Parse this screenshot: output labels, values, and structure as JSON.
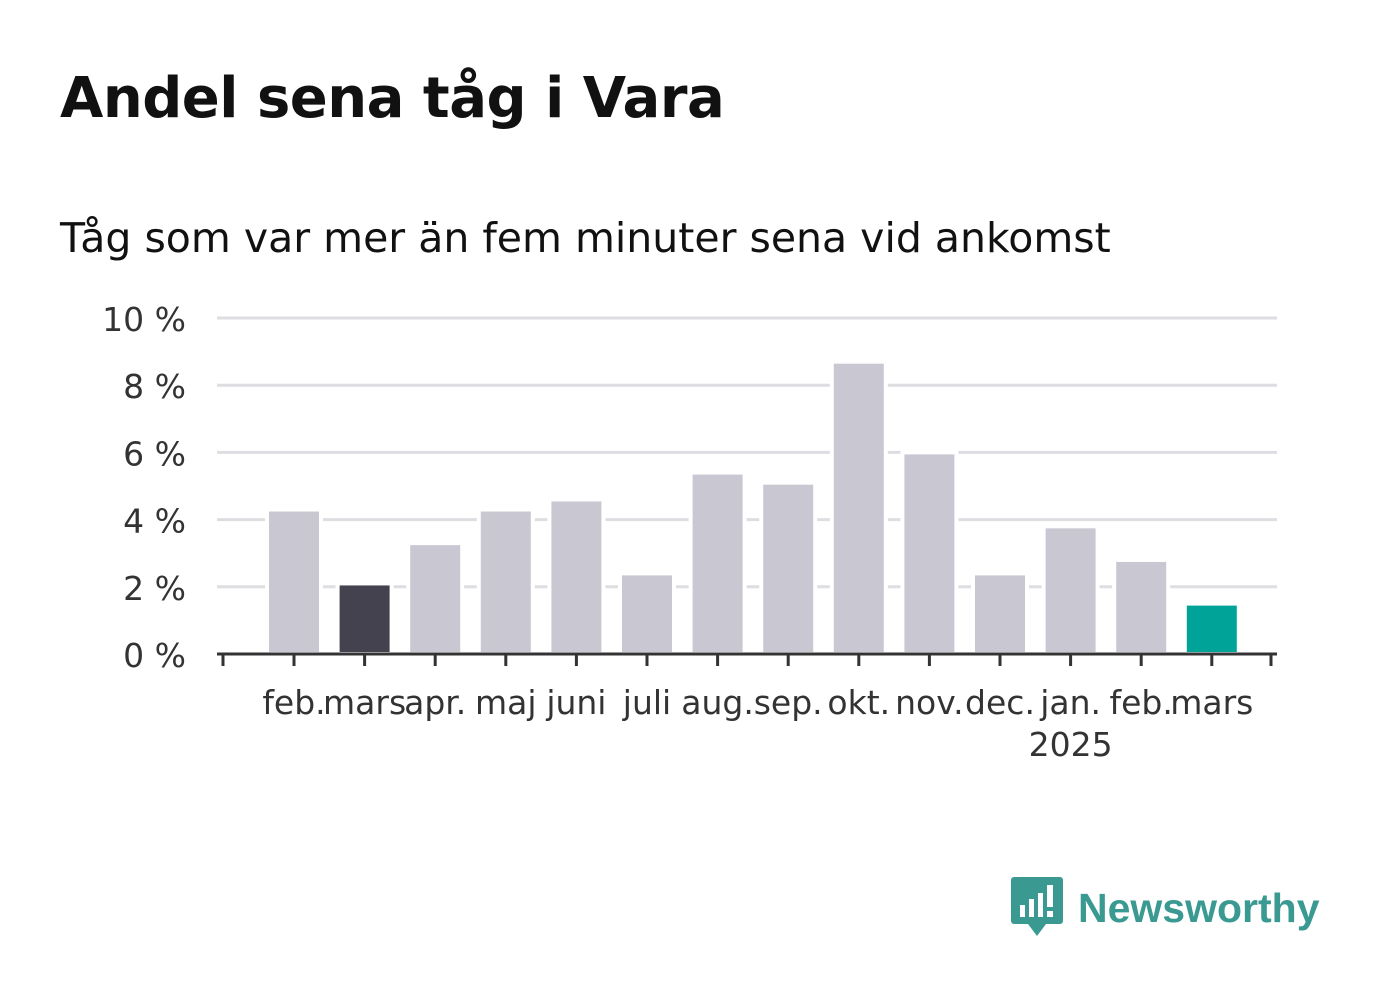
{
  "chart_data": {
    "type": "bar",
    "title": "Andel sena tåg i Vara",
    "subtitle": "Tåg som var mer än fem minuter sena vid ankomst",
    "categories": [
      "feb.",
      "mars",
      "apr.",
      "maj",
      "juni",
      "juli",
      "aug.",
      "sep.",
      "okt.",
      "nov.",
      "dec.",
      "jan.",
      "feb.",
      "mars"
    ],
    "year_labels": [
      {
        "index": 11,
        "label": "2025"
      }
    ],
    "values": [
      4.3,
      2.1,
      3.3,
      4.3,
      4.6,
      2.4,
      5.4,
      5.1,
      8.7,
      6.0,
      2.4,
      3.8,
      2.8,
      1.5
    ],
    "bar_colors": [
      "#c9c8d2",
      "#43424e",
      "#c9c8d2",
      "#c9c8d2",
      "#c9c8d2",
      "#c9c8d2",
      "#c9c8d2",
      "#c9c8d2",
      "#c9c8d2",
      "#c9c8d2",
      "#c9c8d2",
      "#c9c8d2",
      "#c9c8d2",
      "#00a398"
    ],
    "y_ticks": [
      "0 %",
      "2 %",
      "4 %",
      "6 %",
      "8 %",
      "10 %"
    ],
    "ylim": [
      0,
      10
    ],
    "grid": true,
    "xlabel": "",
    "ylabel": ""
  },
  "branding": {
    "name": "Newsworthy",
    "icon": "newsworthy-logo-icon",
    "color": "#3a9a92"
  }
}
